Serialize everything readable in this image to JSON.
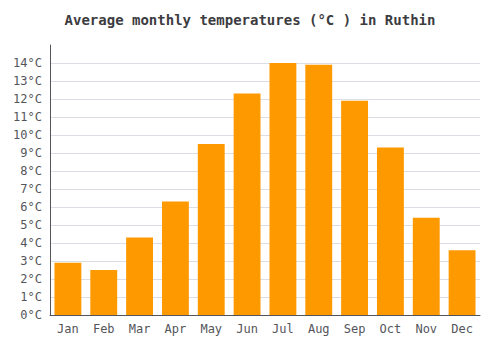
{
  "chart_data": {
    "type": "bar",
    "title": "Average monthly temperatures (°C ) in Ruthin",
    "categories": [
      "Jan",
      "Feb",
      "Mar",
      "Apr",
      "May",
      "Jun",
      "Jul",
      "Aug",
      "Sep",
      "Oct",
      "Nov",
      "Dec"
    ],
    "values": [
      2.9,
      2.5,
      4.3,
      6.3,
      9.5,
      12.3,
      14.0,
      13.9,
      11.9,
      9.3,
      5.4,
      3.6
    ],
    "color": "#FF9900",
    "ylim": [
      0,
      15
    ],
    "yticks": [
      {
        "value": 0,
        "label": "0°C"
      },
      {
        "value": 1,
        "label": "1°C"
      },
      {
        "value": 2,
        "label": "2°C"
      },
      {
        "value": 3,
        "label": "3°C"
      },
      {
        "value": 4,
        "label": "4°C"
      },
      {
        "value": 5,
        "label": "5°C"
      },
      {
        "value": 6,
        "label": "6°C"
      },
      {
        "value": 7,
        "label": "7°C"
      },
      {
        "value": 8,
        "label": "8°C"
      },
      {
        "value": 9,
        "label": "9°C"
      },
      {
        "value": 10,
        "label": "10°C"
      },
      {
        "value": 11,
        "label": "11°C"
      },
      {
        "value": 12,
        "label": "12°C"
      },
      {
        "value": 13,
        "label": "13°C"
      },
      {
        "value": 14,
        "label": "14°C"
      }
    ],
    "grid": true
  }
}
